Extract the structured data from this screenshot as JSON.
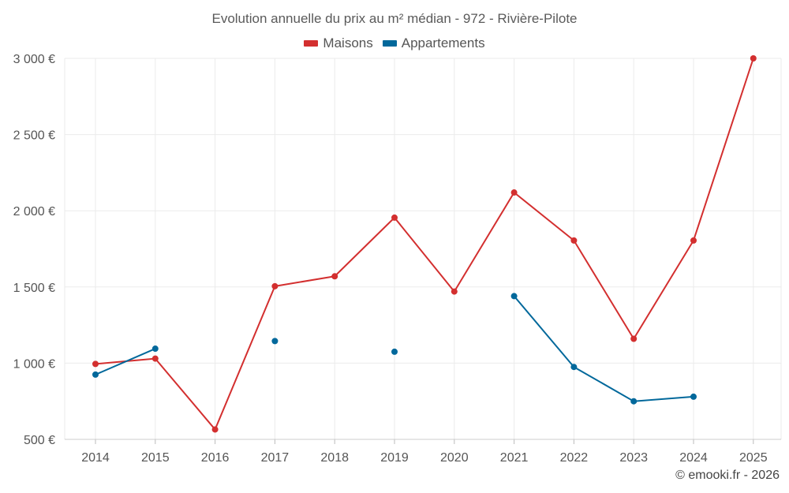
{
  "chart_data": {
    "type": "line",
    "title": "Evolution annuelle du prix au m² médian - 972 - Rivière-Pilote",
    "categories": [
      "2014",
      "2015",
      "2016",
      "2017",
      "2018",
      "2019",
      "2020",
      "2021",
      "2022",
      "2023",
      "2024",
      "2025"
    ],
    "ylim": [
      500,
      3000
    ],
    "yticks": [
      500,
      1000,
      1500,
      2000,
      2500,
      3000
    ],
    "ytick_labels": [
      "500 €",
      "1 000 €",
      "1 500 €",
      "2 000 €",
      "2 500 €",
      "3 000 €"
    ],
    "xlabel": "",
    "ylabel": "",
    "grid": true,
    "legend_position": "top-center",
    "series": [
      {
        "name": "Maisons",
        "color": "#d32f2f",
        "values": [
          995,
          1030,
          565,
          1505,
          1570,
          1955,
          1470,
          2120,
          1805,
          1160,
          1805,
          3000
        ]
      },
      {
        "name": "Appartements",
        "color": "#01689b",
        "values": [
          925,
          1095,
          null,
          1145,
          null,
          1075,
          null,
          1440,
          975,
          750,
          780,
          null
        ]
      }
    ]
  },
  "credit": "© emooki.fr - 2026"
}
